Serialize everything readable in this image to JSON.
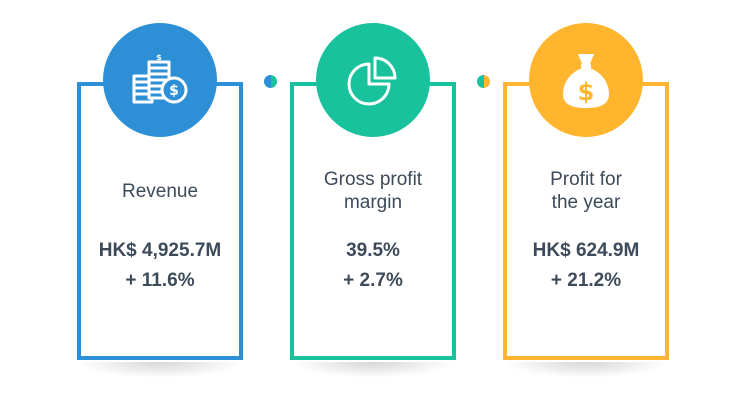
{
  "colors": {
    "revenue": "#2d8fd5",
    "gross_margin": "#17c29c",
    "profit": "#ffb52e",
    "text": "#3d4a5a"
  },
  "cards": [
    {
      "icon": "coins-stack-icon",
      "label_line1": "Revenue",
      "label_line2": "",
      "value": "HK$ 4,925.7M",
      "change": "+ 11.6%"
    },
    {
      "icon": "pie-chart-icon",
      "label_line1": "Gross profit",
      "label_line2": "margin",
      "value": "39.5%",
      "change": "+ 2.7%"
    },
    {
      "icon": "money-bag-dollar-icon",
      "label_line1": "Profit for",
      "label_line2": "the year",
      "value": "HK$ 624.9M",
      "change": "+ 21.2%"
    }
  ]
}
